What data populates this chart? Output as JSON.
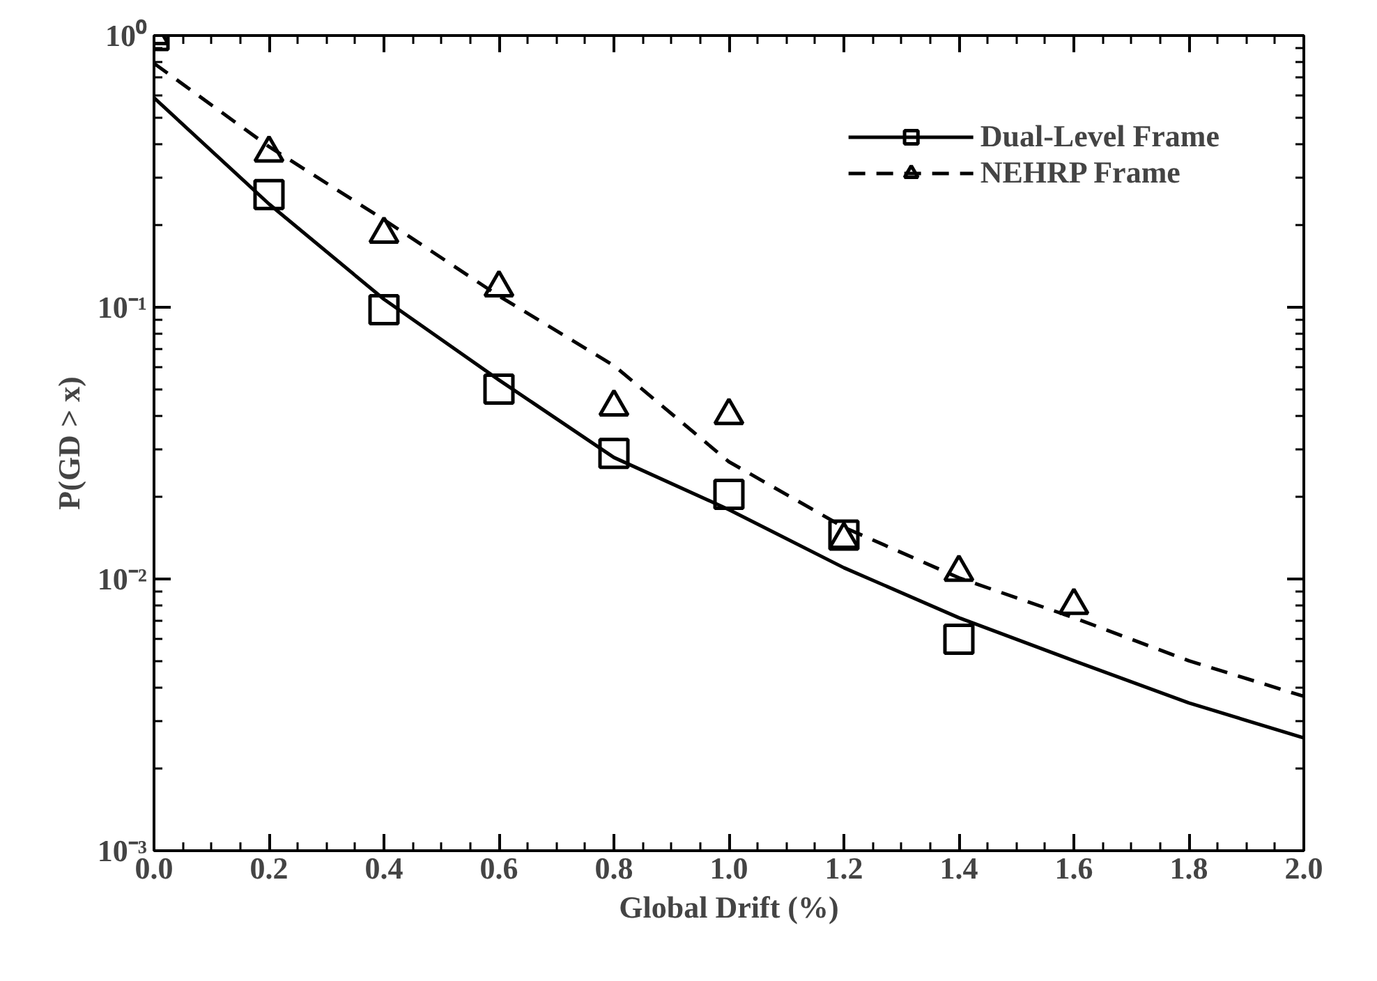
{
  "chart_data": {
    "type": "scatter",
    "xlabel": "Global Drift (%)",
    "ylabel": "P(GD > x)",
    "log": "y",
    "grid": false,
    "legend": "top right",
    "xlim": [
      0,
      2.0
    ],
    "xticks": [
      {
        "value": 0,
        "label": "0.0"
      },
      0.2,
      0.4,
      0.6,
      0.8,
      {
        "value": 1,
        "label": "1.0"
      },
      1.2,
      1.4,
      1.6,
      1.8,
      {
        "value": 2,
        "label": "2.0"
      }
    ],
    "ylim": [
      0.001,
      1
    ],
    "yticks": [
      {
        "value": 1,
        "label": "10⁰"
      },
      {
        "value": 0.1,
        "label": "10⁻¹"
      },
      {
        "value": 0.01,
        "label": "10⁻²"
      },
      {
        "value": 0.001,
        "label": "10⁻³"
      }
    ],
    "series": [
      {
        "name": "Dual-Level Frame",
        "marker": "square",
        "color": "#000000",
        "x": [
          0,
          0.2,
          0.4,
          0.6,
          0.8,
          1.0,
          1.2,
          1.4
        ],
        "values": [
          1.0,
          0.26,
          0.098,
          0.05,
          0.029,
          0.0205,
          0.0145,
          0.006
        ]
      },
      {
        "type": "line",
        "line_style": "solid",
        "marker": "none",
        "color": "#000000",
        "x": [
          0,
          0.2,
          0.4,
          0.6,
          0.8,
          1.0,
          1.2,
          1.4,
          1.6,
          1.8,
          2.0
        ],
        "values": [
          0.59,
          0.24,
          0.107,
          0.054,
          0.028,
          0.018,
          0.011,
          0.0072,
          0.005,
          0.0035,
          0.0026
        ]
      },
      {
        "name": "NEHRP Frame",
        "marker": "triangle",
        "color": "#000000",
        "x": [
          0,
          0.2,
          0.4,
          0.6,
          0.8,
          1.0,
          1.2,
          1.4,
          1.6
        ],
        "values": [
          1.0,
          0.37,
          0.186,
          0.118,
          0.043,
          0.04,
          0.014,
          0.0106,
          0.008
        ]
      },
      {
        "type": "line",
        "line_style": "dashed",
        "marker": "none",
        "color": "#000000",
        "x": [
          0,
          0.2,
          0.4,
          0.6,
          0.8,
          1.0,
          1.2,
          1.4,
          1.6,
          1.8,
          2.0
        ],
        "values": [
          0.79,
          0.39,
          0.21,
          0.11,
          0.061,
          0.027,
          0.0155,
          0.0101,
          0.0072,
          0.005,
          0.0037
        ]
      }
    ]
  }
}
